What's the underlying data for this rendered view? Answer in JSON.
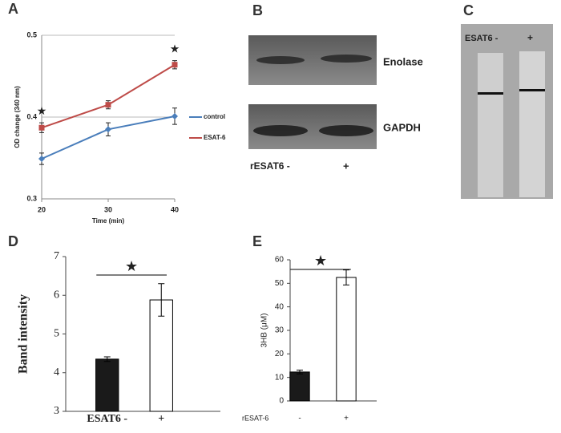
{
  "chart_data": [
    {
      "panel": "A",
      "type": "line",
      "xlabel": "Time (min)",
      "ylabel": "OD change (340 nm)",
      "x": [
        20,
        30,
        40
      ],
      "xlim": [
        20,
        40
      ],
      "xticks": [
        20,
        30,
        40
      ],
      "ylim": [
        0.3,
        0.5
      ],
      "yticks": [
        0.3,
        0.4,
        0.5
      ],
      "grid": true,
      "series": [
        {
          "name": "control",
          "color": "#4a7ebb",
          "values": [
            0.349,
            0.385,
            0.401
          ],
          "errors": [
            0.007,
            0.008,
            0.01
          ]
        },
        {
          "name": "ESAT-6",
          "color": "#be4b48",
          "values": [
            0.387,
            0.415,
            0.464
          ],
          "errors": [
            0.006,
            0.005,
            0.005
          ]
        }
      ],
      "annotations": [
        {
          "text": "★",
          "x": 20
        },
        {
          "text": "★",
          "x": 40
        }
      ]
    },
    {
      "panel": "D",
      "type": "bar",
      "ylabel": "Band intensity",
      "categories": [
        "ESAT6 -",
        "+"
      ],
      "values": [
        4.35,
        5.88
      ],
      "errors": [
        0.06,
        0.42
      ],
      "colors": [
        "#1a1a1a",
        "#ffffff"
      ],
      "ylim": [
        3,
        7
      ],
      "yticks": [
        3,
        4,
        5,
        6,
        7
      ],
      "annotation": "★"
    },
    {
      "panel": "E",
      "type": "bar",
      "ylabel": "3HB (μM)",
      "xlabel": "rESAT-6",
      "categories": [
        "-",
        "+"
      ],
      "values": [
        12.3,
        52.5
      ],
      "errors": [
        0.8,
        3.2
      ],
      "colors": [
        "#1a1a1a",
        "#ffffff"
      ],
      "ylim": [
        0,
        60
      ],
      "yticks": [
        0,
        10,
        20,
        30,
        40,
        50,
        60
      ],
      "annotation": "★"
    }
  ],
  "blots": {
    "panel": "B",
    "bands": [
      "Enolase",
      "GAPDH"
    ],
    "lanes": [
      "rESAT6 -",
      "+"
    ]
  },
  "gel": {
    "panel": "C",
    "lanes": [
      "ESAT6 -",
      "+"
    ]
  }
}
